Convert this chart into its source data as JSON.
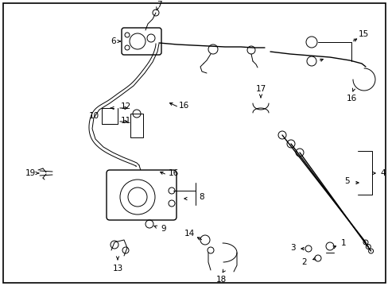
{
  "background_color": "#ffffff",
  "border_color": "#000000",
  "line_color": "#000000",
  "fig_width": 4.89,
  "fig_height": 3.6,
  "dpi": 100
}
